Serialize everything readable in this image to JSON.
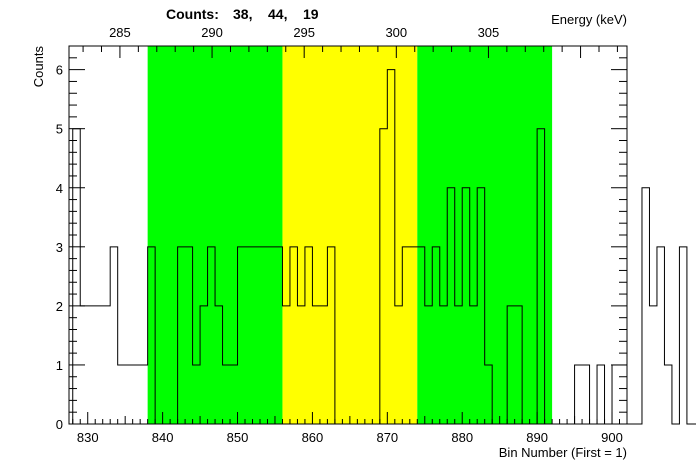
{
  "chart_data": {
    "type": "histogram",
    "title": "",
    "summary_label": "Counts:",
    "summary_values": [
      "38,",
      "44,",
      "19"
    ],
    "xlabel": "Bin Number (First = 1)",
    "ylabel": "Counts",
    "top_axis_label": "Energy (keV)",
    "xlim": [
      827.5,
      902
    ],
    "ylim": [
      0,
      6.4
    ],
    "x_ticks": [
      830,
      840,
      850,
      860,
      870,
      880,
      890,
      900
    ],
    "y_ticks": [
      0,
      1,
      2,
      3,
      4,
      5,
      6
    ],
    "energy_ticks": [
      {
        "energy": "285",
        "bin": 834.3
      },
      {
        "energy": "290",
        "bin": 846.6
      },
      {
        "energy": "295",
        "bin": 858.9
      },
      {
        "energy": "300",
        "bin": 871.2
      },
      {
        "energy": "305",
        "bin": 883.5
      }
    ],
    "regions": [
      {
        "name": "background-left",
        "from": 838,
        "to": 856,
        "color": "#00ff00"
      },
      {
        "name": "peak",
        "from": 856,
        "to": 874,
        "color": "#ffff00"
      },
      {
        "name": "background-right",
        "from": 874,
        "to": 892,
        "color": "#00ff00"
      }
    ],
    "bins_start": 828,
    "bin_width": 1,
    "counts": [
      5,
      2,
      2,
      2,
      2,
      3,
      1,
      1,
      1,
      1,
      3,
      0,
      0,
      0,
      3,
      3,
      1,
      2,
      3,
      2,
      1,
      1,
      3,
      3,
      3,
      3,
      3,
      3,
      2,
      3,
      2,
      3,
      2,
      2,
      3,
      0,
      0,
      0,
      0,
      0,
      0,
      5,
      6,
      2,
      3,
      3,
      3,
      2,
      3,
      2,
      4,
      2,
      4,
      2,
      4,
      1,
      0,
      0,
      2,
      2,
      0,
      0,
      5,
      0,
      0,
      0,
      0,
      1,
      1,
      0,
      1,
      0,
      1,
      1,
      0,
      0,
      4,
      2,
      3,
      1,
      0,
      3,
      0,
      0,
      2,
      2
    ],
    "grid": false,
    "legend": "none"
  }
}
